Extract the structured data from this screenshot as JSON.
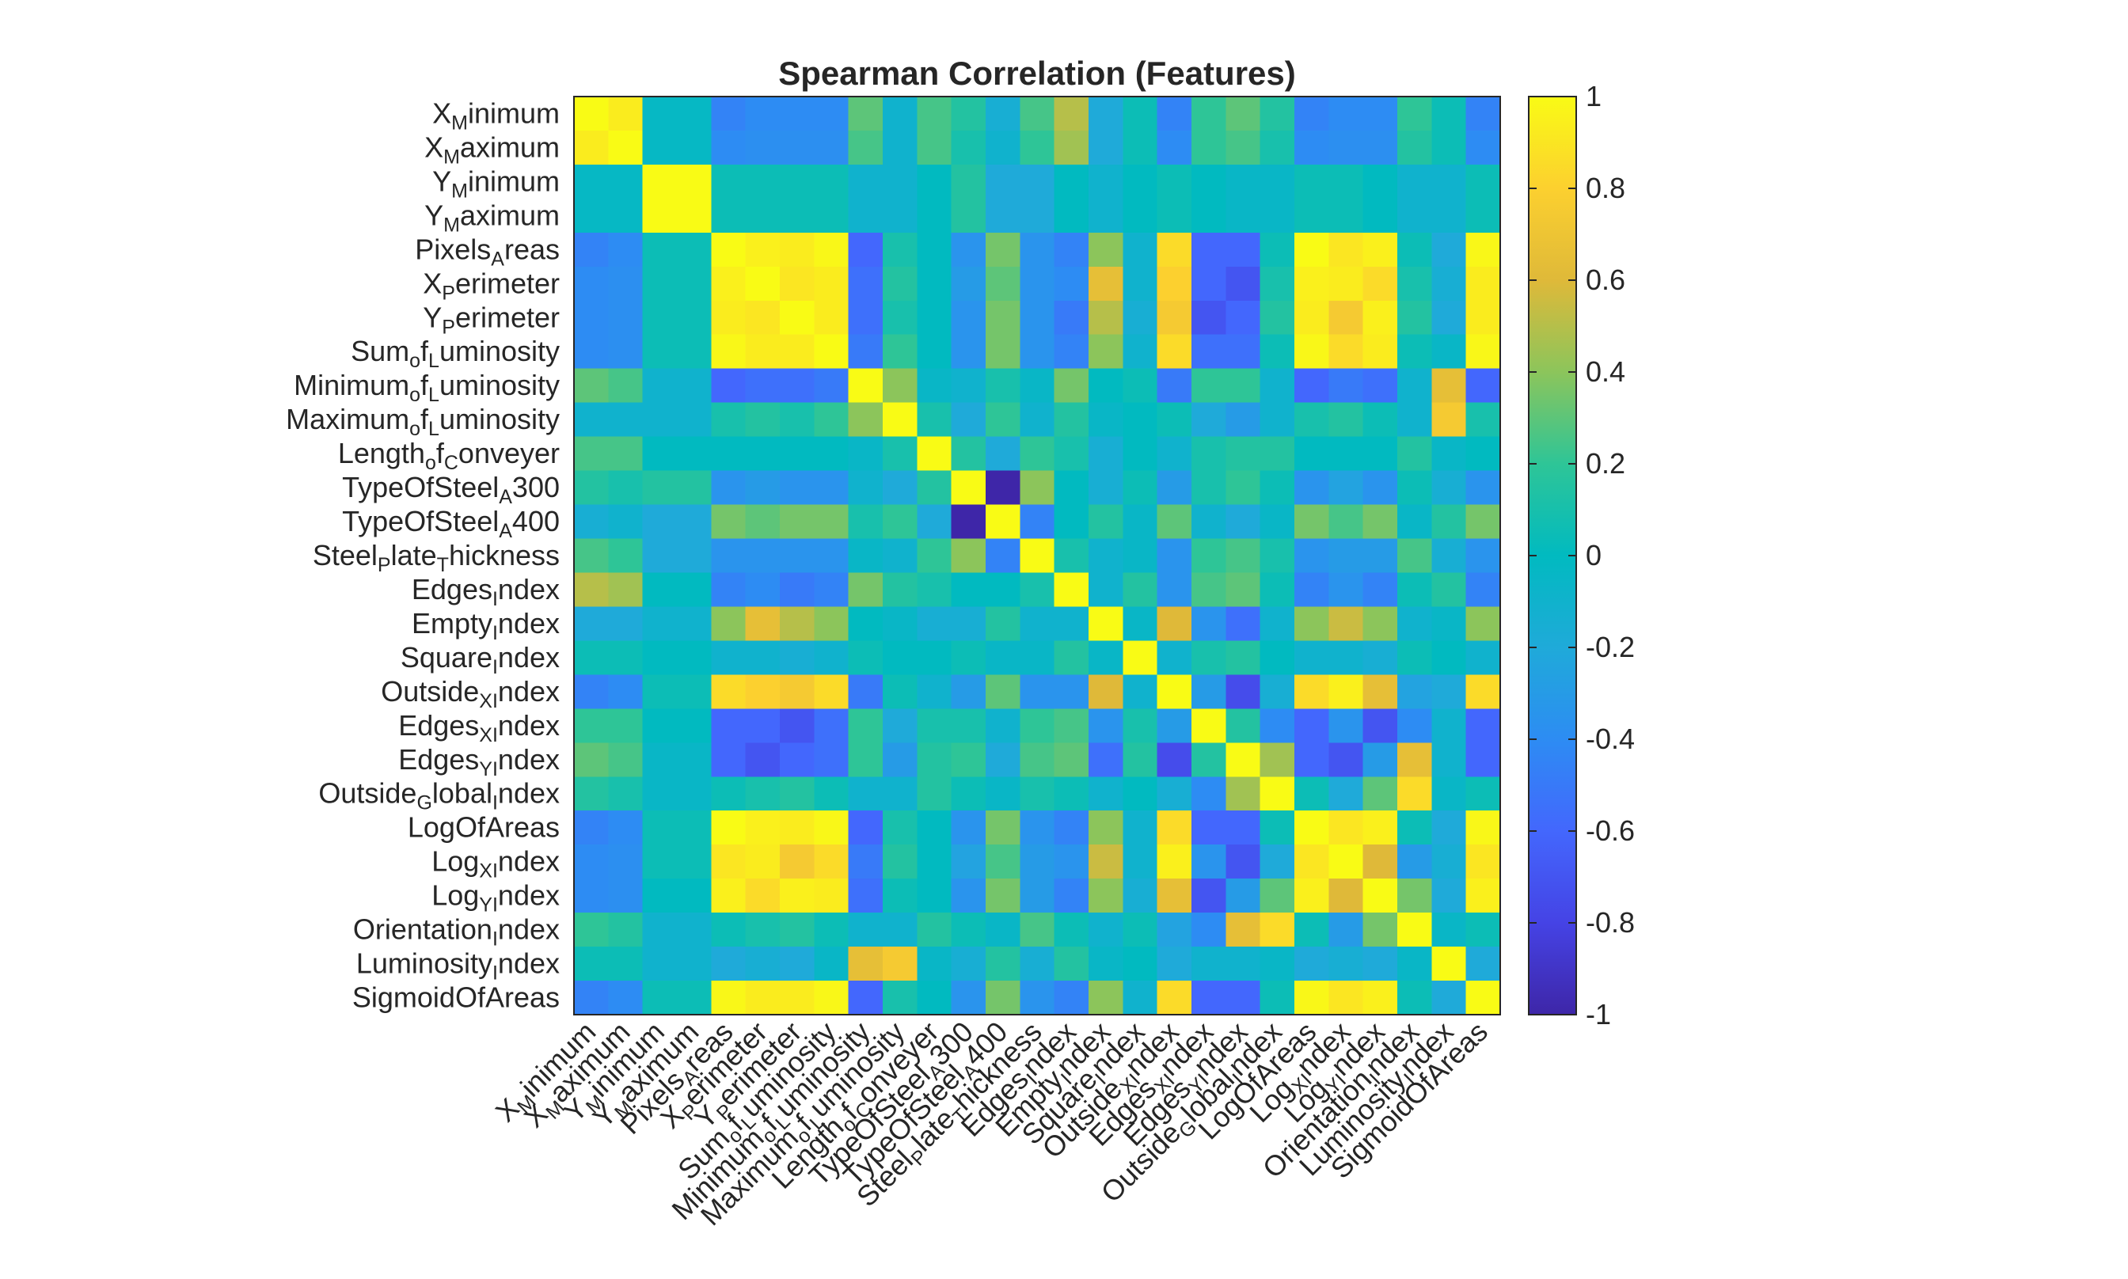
{
  "chart_data": {
    "type": "heatmap",
    "title": "Spearman Correlation (Features)",
    "xlabel": "",
    "ylabel": "",
    "grid": false,
    "colormap": "parula",
    "clim": [
      -1,
      1
    ],
    "colorbar": {
      "placement": "right",
      "ticks": [
        1,
        0.8,
        0.6,
        0.4,
        0.2,
        0,
        -0.2,
        -0.4,
        -0.6,
        -0.8,
        -1
      ],
      "tick_labels": [
        "1",
        "0.8",
        "0.6",
        "0.4",
        "0.2",
        "0",
        "-0.2",
        "-0.4",
        "-0.6",
        "-0.8",
        "-1"
      ]
    },
    "labels": [
      {
        "base": "X",
        "sub": "M",
        "rest": "inimum"
      },
      {
        "base": "X",
        "sub": "M",
        "rest": "aximum"
      },
      {
        "base": "Y",
        "sub": "M",
        "rest": "inimum"
      },
      {
        "base": "Y",
        "sub": "M",
        "rest": "aximum"
      },
      {
        "base": "Pixels",
        "sub": "A",
        "rest": "reas"
      },
      {
        "base": "X",
        "sub": "P",
        "rest": "erimeter"
      },
      {
        "base": "Y",
        "sub": "P",
        "rest": "erimeter"
      },
      {
        "base": "Sum",
        "sub": "o",
        "rest": "f",
        "sub2": "L",
        "rest2": "uminosity"
      },
      {
        "base": "Minimum",
        "sub": "o",
        "rest": "f",
        "sub2": "L",
        "rest2": "uminosity"
      },
      {
        "base": "Maximum",
        "sub": "o",
        "rest": "f",
        "sub2": "L",
        "rest2": "uminosity"
      },
      {
        "base": "Length",
        "sub": "o",
        "rest": "f",
        "sub2": "C",
        "rest2": "onveyer"
      },
      {
        "base": "TypeOfSteel",
        "sub": "A",
        "rest": "300"
      },
      {
        "base": "TypeOfSteel",
        "sub": "A",
        "rest": "400"
      },
      {
        "base": "Steel",
        "sub": "P",
        "rest": "late",
        "sub2": "T",
        "rest2": "hickness"
      },
      {
        "base": "Edges",
        "sub": "I",
        "rest": "ndex"
      },
      {
        "base": "Empty",
        "sub": "I",
        "rest": "ndex"
      },
      {
        "base": "Square",
        "sub": "I",
        "rest": "ndex"
      },
      {
        "base": "Outside",
        "sub": "XI",
        "rest": "ndex"
      },
      {
        "base": "Edges",
        "sub": "XI",
        "rest": "ndex"
      },
      {
        "base": "Edges",
        "sub": "YI",
        "rest": "ndex"
      },
      {
        "base": "Outside",
        "sub": "G",
        "rest": "lobal",
        "sub2": "I",
        "rest2": "ndex"
      },
      {
        "base": "LogOfAreas",
        "sub": "",
        "rest": ""
      },
      {
        "base": "Log",
        "sub": "XI",
        "rest": "ndex"
      },
      {
        "base": "Log",
        "sub": "YI",
        "rest": "ndex"
      },
      {
        "base": "Orientation",
        "sub": "I",
        "rest": "ndex"
      },
      {
        "base": "Luminosity",
        "sub": "I",
        "rest": "ndex"
      },
      {
        "base": "SigmoidOfAreas",
        "sub": "",
        "rest": ""
      }
    ],
    "matrix": [
      [
        1.0,
        0.93,
        -0.03,
        -0.03,
        -0.45,
        -0.4,
        -0.4,
        -0.4,
        0.3,
        -0.1,
        0.25,
        0.15,
        -0.15,
        0.25,
        0.5,
        -0.2,
        0.05,
        -0.45,
        0.2,
        0.3,
        0.15,
        -0.45,
        -0.4,
        -0.4,
        0.2,
        0.05,
        -0.45
      ],
      [
        0.93,
        1.0,
        -0.03,
        -0.03,
        -0.4,
        -0.38,
        -0.38,
        -0.38,
        0.25,
        -0.1,
        0.25,
        0.1,
        -0.1,
        0.2,
        0.45,
        -0.2,
        0.05,
        -0.4,
        0.2,
        0.25,
        0.1,
        -0.4,
        -0.38,
        -0.38,
        0.15,
        0.05,
        -0.4
      ],
      [
        -0.03,
        -0.03,
        1.0,
        1.0,
        0.05,
        0.05,
        0.05,
        0.05,
        -0.1,
        -0.1,
        0.0,
        0.15,
        -0.2,
        -0.2,
        0.0,
        -0.1,
        0.0,
        0.05,
        0.0,
        -0.05,
        -0.05,
        0.05,
        0.05,
        0.0,
        -0.1,
        -0.1,
        0.05
      ],
      [
        -0.03,
        -0.03,
        1.0,
        1.0,
        0.05,
        0.05,
        0.05,
        0.05,
        -0.1,
        -0.1,
        0.0,
        0.15,
        -0.2,
        -0.2,
        0.0,
        -0.1,
        0.0,
        0.05,
        0.0,
        -0.05,
        -0.05,
        0.05,
        0.05,
        0.0,
        -0.1,
        -0.1,
        0.05
      ],
      [
        -0.45,
        -0.4,
        0.05,
        0.05,
        1.0,
        0.95,
        0.93,
        0.98,
        -0.6,
        0.1,
        0.0,
        -0.35,
        0.35,
        -0.35,
        -0.45,
        0.4,
        -0.1,
        0.85,
        -0.6,
        -0.6,
        0.05,
        1.0,
        0.9,
        0.95,
        0.05,
        -0.2,
        0.98
      ],
      [
        -0.4,
        -0.38,
        0.05,
        0.05,
        0.95,
        1.0,
        0.9,
        0.93,
        -0.55,
        0.15,
        0.0,
        -0.3,
        0.3,
        -0.35,
        -0.4,
        0.65,
        -0.1,
        0.8,
        -0.6,
        -0.7,
        0.1,
        0.95,
        0.93,
        0.85,
        0.1,
        -0.15,
        0.93
      ],
      [
        -0.4,
        -0.38,
        0.05,
        0.05,
        0.93,
        0.9,
        1.0,
        0.93,
        -0.55,
        0.1,
        0.0,
        -0.35,
        0.35,
        -0.35,
        -0.5,
        0.5,
        -0.15,
        0.75,
        -0.7,
        -0.6,
        0.15,
        0.93,
        0.75,
        0.95,
        0.15,
        -0.2,
        0.93
      ],
      [
        -0.4,
        -0.38,
        0.05,
        0.05,
        0.98,
        0.93,
        0.93,
        1.0,
        -0.5,
        0.2,
        0.0,
        -0.35,
        0.35,
        -0.35,
        -0.45,
        0.4,
        -0.1,
        0.85,
        -0.55,
        -0.55,
        0.05,
        0.98,
        0.85,
        0.93,
        0.05,
        -0.05,
        0.98
      ],
      [
        0.3,
        0.25,
        -0.1,
        -0.1,
        -0.6,
        -0.55,
        -0.55,
        -0.5,
        1.0,
        0.4,
        -0.05,
        -0.1,
        0.1,
        -0.05,
        0.35,
        0.0,
        0.05,
        -0.5,
        0.2,
        0.2,
        -0.1,
        -0.6,
        -0.5,
        -0.55,
        -0.1,
        0.65,
        -0.6
      ],
      [
        -0.1,
        -0.1,
        -0.1,
        -0.1,
        0.1,
        0.15,
        0.1,
        0.2,
        0.4,
        1.0,
        0.1,
        -0.2,
        0.2,
        -0.1,
        0.15,
        -0.05,
        0.0,
        0.05,
        -0.2,
        -0.3,
        -0.1,
        0.1,
        0.15,
        0.05,
        -0.1,
        0.75,
        0.1
      ],
      [
        0.25,
        0.25,
        0.0,
        0.0,
        0.0,
        0.0,
        0.0,
        0.0,
        -0.05,
        0.1,
        1.0,
        0.15,
        -0.2,
        0.2,
        0.1,
        -0.15,
        0.0,
        -0.1,
        0.1,
        0.15,
        0.15,
        0.0,
        0.0,
        0.0,
        0.15,
        -0.05,
        0.0
      ],
      [
        0.15,
        0.1,
        0.15,
        0.15,
        -0.35,
        -0.3,
        -0.35,
        -0.35,
        -0.1,
        -0.2,
        0.15,
        1.0,
        -1.0,
        0.4,
        0.0,
        -0.15,
        0.05,
        -0.3,
        0.1,
        0.2,
        0.05,
        -0.35,
        -0.25,
        -0.35,
        0.05,
        -0.15,
        -0.35
      ],
      [
        -0.15,
        -0.1,
        -0.2,
        -0.2,
        0.35,
        0.3,
        0.35,
        0.35,
        0.1,
        0.2,
        -0.2,
        -1.0,
        1.0,
        -0.45,
        0.0,
        0.15,
        -0.05,
        0.3,
        -0.1,
        -0.2,
        -0.05,
        0.35,
        0.25,
        0.35,
        -0.05,
        0.15,
        0.35
      ],
      [
        0.25,
        0.2,
        -0.2,
        -0.2,
        -0.35,
        -0.35,
        -0.35,
        -0.35,
        -0.05,
        -0.1,
        0.2,
        0.4,
        -0.45,
        1.0,
        0.1,
        -0.1,
        -0.05,
        -0.35,
        0.2,
        0.25,
        0.1,
        -0.35,
        -0.3,
        -0.3,
        0.25,
        -0.15,
        -0.35
      ],
      [
        0.5,
        0.45,
        0.0,
        0.0,
        -0.45,
        -0.4,
        -0.5,
        -0.45,
        0.35,
        0.15,
        0.1,
        0.0,
        0.0,
        0.1,
        1.0,
        -0.1,
        0.15,
        -0.35,
        0.25,
        0.3,
        0.05,
        -0.45,
        -0.35,
        -0.45,
        0.05,
        0.15,
        -0.45
      ],
      [
        -0.2,
        -0.2,
        -0.1,
        -0.1,
        0.4,
        0.65,
        0.5,
        0.4,
        0.0,
        -0.05,
        -0.15,
        -0.15,
        0.15,
        -0.1,
        -0.1,
        1.0,
        -0.05,
        0.6,
        -0.35,
        -0.55,
        -0.1,
        0.4,
        0.55,
        0.4,
        -0.1,
        -0.05,
        0.4
      ],
      [
        0.05,
        0.05,
        0.0,
        0.0,
        -0.1,
        -0.1,
        -0.15,
        -0.1,
        0.05,
        0.0,
        0.0,
        0.05,
        -0.05,
        -0.05,
        0.15,
        -0.05,
        1.0,
        -0.1,
        0.1,
        0.15,
        0.0,
        -0.1,
        -0.1,
        -0.15,
        0.05,
        0.0,
        -0.1
      ],
      [
        -0.45,
        -0.4,
        0.05,
        0.05,
        0.85,
        0.8,
        0.75,
        0.85,
        -0.5,
        0.05,
        -0.1,
        -0.3,
        0.3,
        -0.35,
        -0.35,
        0.6,
        -0.1,
        1.0,
        -0.3,
        -0.75,
        -0.15,
        0.85,
        0.95,
        0.65,
        -0.25,
        -0.2,
        0.85
      ],
      [
        0.2,
        0.2,
        0.0,
        0.0,
        -0.6,
        -0.6,
        -0.7,
        -0.55,
        0.2,
        -0.2,
        0.1,
        0.1,
        -0.1,
        0.2,
        0.25,
        -0.35,
        0.1,
        -0.3,
        1.0,
        0.15,
        -0.4,
        -0.6,
        -0.35,
        -0.7,
        -0.4,
        -0.1,
        -0.6
      ],
      [
        0.3,
        0.25,
        -0.05,
        -0.05,
        -0.6,
        -0.7,
        -0.6,
        -0.55,
        0.2,
        -0.3,
        0.15,
        0.2,
        -0.2,
        0.25,
        0.3,
        -0.55,
        0.15,
        -0.75,
        0.15,
        1.0,
        0.45,
        -0.6,
        -0.7,
        -0.3,
        0.65,
        -0.1,
        -0.6
      ],
      [
        0.15,
        0.1,
        -0.05,
        -0.05,
        0.05,
        0.1,
        0.15,
        0.05,
        -0.1,
        -0.1,
        0.15,
        0.05,
        -0.05,
        0.1,
        0.05,
        -0.1,
        0.0,
        -0.15,
        -0.4,
        0.45,
        1.0,
        0.05,
        -0.2,
        0.3,
        0.85,
        -0.05,
        0.05
      ],
      [
        -0.45,
        -0.4,
        0.05,
        0.05,
        1.0,
        0.95,
        0.93,
        0.98,
        -0.6,
        0.1,
        0.0,
        -0.35,
        0.35,
        -0.35,
        -0.45,
        0.4,
        -0.1,
        0.85,
        -0.6,
        -0.6,
        0.05,
        1.0,
        0.9,
        0.95,
        0.05,
        -0.2,
        0.98
      ],
      [
        -0.4,
        -0.38,
        0.05,
        0.05,
        0.9,
        0.93,
        0.75,
        0.85,
        -0.5,
        0.15,
        0.0,
        -0.25,
        0.25,
        -0.3,
        -0.35,
        0.55,
        -0.1,
        0.95,
        -0.35,
        -0.7,
        -0.2,
        0.9,
        1.0,
        0.6,
        -0.3,
        -0.15,
        0.9
      ],
      [
        -0.4,
        -0.38,
        0.0,
        0.0,
        0.95,
        0.85,
        0.95,
        0.93,
        -0.55,
        0.05,
        0.0,
        -0.35,
        0.35,
        -0.3,
        -0.45,
        0.4,
        -0.15,
        0.65,
        -0.7,
        -0.3,
        0.3,
        0.95,
        0.6,
        1.0,
        0.35,
        -0.2,
        0.95
      ],
      [
        0.2,
        0.15,
        -0.1,
        -0.1,
        0.05,
        0.1,
        0.15,
        0.05,
        -0.1,
        -0.1,
        0.15,
        0.05,
        -0.05,
        0.25,
        0.05,
        -0.1,
        0.05,
        -0.25,
        -0.4,
        0.65,
        0.85,
        0.05,
        -0.3,
        0.35,
        1.0,
        -0.05,
        0.05
      ],
      [
        0.05,
        0.05,
        -0.1,
        -0.1,
        -0.2,
        -0.15,
        -0.2,
        -0.05,
        0.65,
        0.75,
        -0.05,
        -0.15,
        0.15,
        -0.15,
        0.15,
        -0.05,
        0.0,
        -0.2,
        -0.1,
        -0.1,
        -0.05,
        -0.2,
        -0.15,
        -0.2,
        -0.05,
        1.0,
        -0.2
      ],
      [
        -0.45,
        -0.4,
        0.05,
        0.05,
        0.98,
        0.93,
        0.93,
        0.98,
        -0.6,
        0.1,
        0.0,
        -0.35,
        0.35,
        -0.35,
        -0.45,
        0.4,
        -0.1,
        0.85,
        -0.6,
        -0.6,
        0.05,
        0.98,
        0.9,
        0.95,
        0.05,
        -0.2,
        1.0
      ]
    ]
  }
}
